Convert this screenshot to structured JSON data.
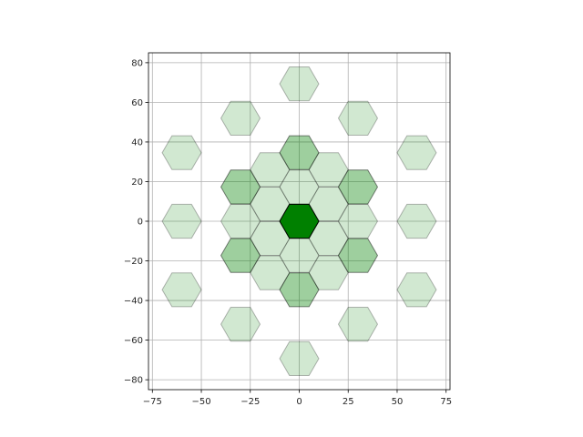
{
  "chart_data": {
    "type": "scatter",
    "marker": "hexagon",
    "title": "",
    "xlabel": "",
    "ylabel": "",
    "xlim": [
      -77,
      77
    ],
    "ylim": [
      -85,
      85
    ],
    "grid": true,
    "x_ticks": [
      -75,
      -50,
      -25,
      0,
      25,
      50,
      75
    ],
    "y_ticks": [
      -80,
      -60,
      -40,
      -20,
      0,
      20,
      40,
      60,
      80
    ],
    "x_tick_labels": [
      "−75",
      "−50",
      "−25",
      "0",
      "25",
      "50",
      "75"
    ],
    "y_tick_labels": [
      "−80",
      "−60",
      "−40",
      "−20",
      "0",
      "20",
      "40",
      "60",
      "80"
    ],
    "colors": {
      "fill": "#008000",
      "edge": "#000000"
    },
    "hexagon_radius": 10,
    "points": [
      {
        "x": 0,
        "y": 0,
        "alpha": 1.0
      },
      {
        "x": 0,
        "y": 17.3,
        "alpha": 0.18
      },
      {
        "x": 0,
        "y": -17.3,
        "alpha": 0.18
      },
      {
        "x": 15,
        "y": 8.7,
        "alpha": 0.18
      },
      {
        "x": 15,
        "y": -8.7,
        "alpha": 0.18
      },
      {
        "x": -15,
        "y": 8.7,
        "alpha": 0.18
      },
      {
        "x": -15,
        "y": -8.7,
        "alpha": 0.18
      },
      {
        "x": 0,
        "y": 34.6,
        "alpha": 0.38
      },
      {
        "x": 0,
        "y": -34.6,
        "alpha": 0.38
      },
      {
        "x": 30,
        "y": 17.3,
        "alpha": 0.38
      },
      {
        "x": 30,
        "y": -17.3,
        "alpha": 0.38
      },
      {
        "x": -30,
        "y": 17.3,
        "alpha": 0.38
      },
      {
        "x": -30,
        "y": -17.3,
        "alpha": 0.38
      },
      {
        "x": 15,
        "y": 26,
        "alpha": 0.18
      },
      {
        "x": -15,
        "y": 26,
        "alpha": 0.18
      },
      {
        "x": 15,
        "y": -26,
        "alpha": 0.18
      },
      {
        "x": -15,
        "y": -26,
        "alpha": 0.18
      },
      {
        "x": 30,
        "y": 0,
        "alpha": 0.18
      },
      {
        "x": -30,
        "y": 0,
        "alpha": 0.18
      },
      {
        "x": 0,
        "y": 69.3,
        "alpha": 0.18
      },
      {
        "x": 0,
        "y": -69.3,
        "alpha": 0.18
      },
      {
        "x": 30,
        "y": 52,
        "alpha": 0.18
      },
      {
        "x": -30,
        "y": 52,
        "alpha": 0.18
      },
      {
        "x": 30,
        "y": -52,
        "alpha": 0.18
      },
      {
        "x": -30,
        "y": -52,
        "alpha": 0.18
      },
      {
        "x": 60,
        "y": 34.6,
        "alpha": 0.18
      },
      {
        "x": -60,
        "y": 34.6,
        "alpha": 0.18
      },
      {
        "x": 60,
        "y": -34.6,
        "alpha": 0.18
      },
      {
        "x": -60,
        "y": -34.6,
        "alpha": 0.18
      },
      {
        "x": 60,
        "y": 0,
        "alpha": 0.18
      },
      {
        "x": -60,
        "y": 0,
        "alpha": 0.18
      }
    ]
  }
}
